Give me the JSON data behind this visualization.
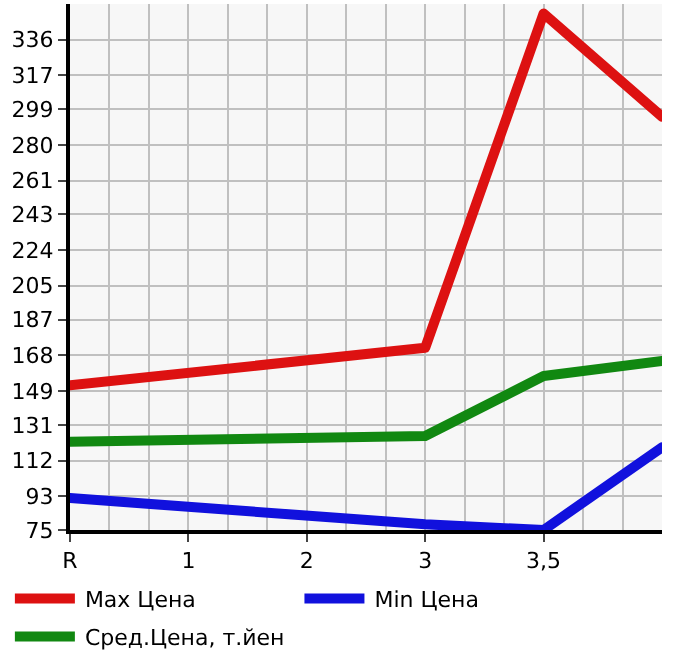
{
  "chart_data": {
    "type": "line",
    "categories": [
      "R",
      "1",
      "2",
      "3",
      "3,5",
      null
    ],
    "series": [
      {
        "name": "Max Цена",
        "color": "#dd1111",
        "values": [
          152,
          null,
          null,
          172,
          350,
          295
        ]
      },
      {
        "name": "Min Цена",
        "color": "#1111dd",
        "values": [
          92,
          null,
          null,
          78,
          75,
          119
        ]
      },
      {
        "name": "Сред.Цена, т.йен",
        "color": "#118811",
        "values": [
          122,
          null,
          null,
          125,
          157,
          165
        ]
      }
    ],
    "ylim": [
      75,
      355
    ],
    "yticks": [
      75,
      93,
      112,
      131,
      149,
      168,
      187,
      205,
      224,
      243,
      261,
      280,
      299,
      317,
      336
    ],
    "grid": true,
    "legend": "bottom",
    "marker": "none",
    "line_style": "solid"
  }
}
